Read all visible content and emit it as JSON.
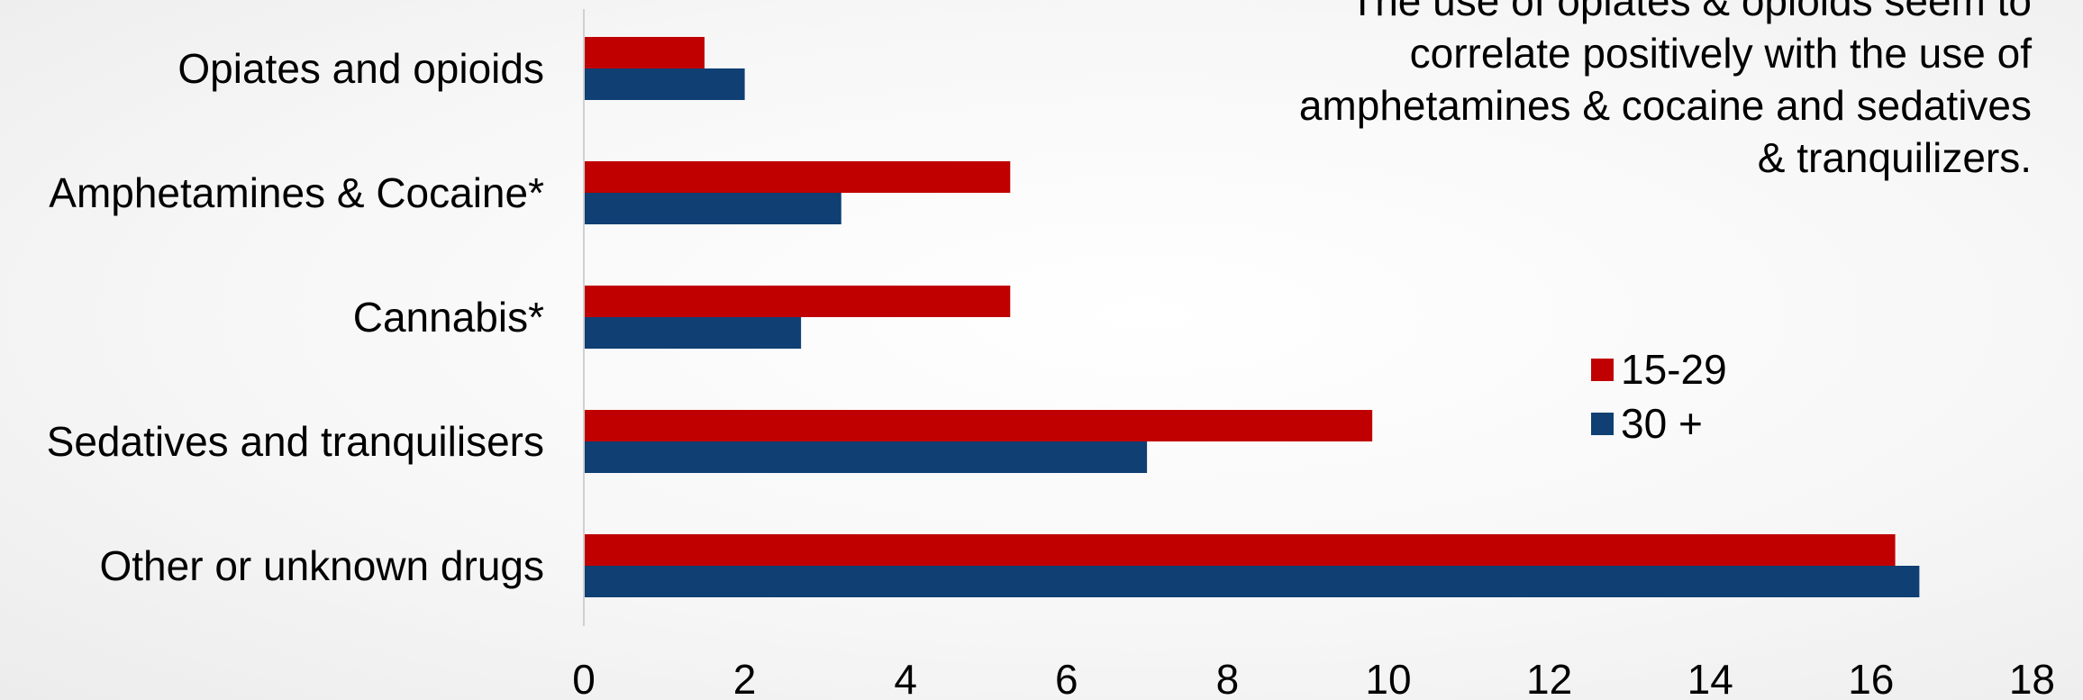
{
  "chart_data": {
    "type": "bar",
    "orientation": "horizontal",
    "categories": [
      "Opiates and opioids",
      "Amphetamines & Cocaine*",
      "Cannabis*",
      "Sedatives and tranquilisers",
      "Other or unknown drugs"
    ],
    "series": [
      {
        "name": "15-29",
        "color": "#c00000",
        "values": [
          1.5,
          5.3,
          5.3,
          9.8,
          16.3
        ]
      },
      {
        "name": "30 +",
        "color": "#0f3f73",
        "values": [
          2.0,
          3.2,
          2.7,
          7.0,
          16.6
        ]
      }
    ],
    "xlim": [
      0,
      18
    ],
    "xticks": [
      "0",
      "2",
      "4",
      "6",
      "8",
      "10",
      "12",
      "14",
      "16",
      "18"
    ],
    "grid": false,
    "legend_position": "right"
  },
  "annotation": "The use of opiates & opioids seem to\ncorrelate positively with the use of\namphetamines & cocaine and sedatives\n& tranquilizers."
}
